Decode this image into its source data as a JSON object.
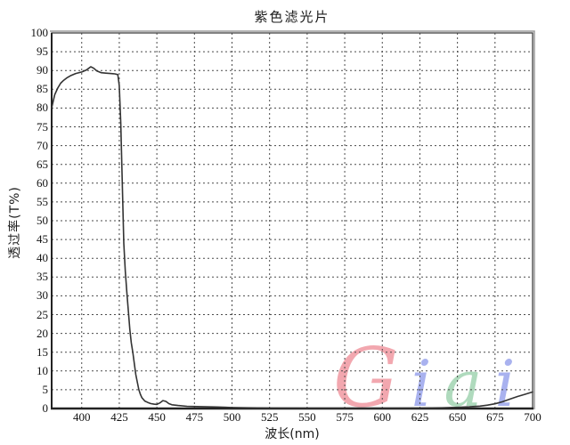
{
  "title": "紫色滤光片",
  "axes": {
    "x_label": "波长(nm)",
    "y_label": "透过率(T%)"
  },
  "watermark": {
    "text": "Giai",
    "letters": [
      {
        "char": "G",
        "color": "#F19CA4"
      },
      {
        "char": "i",
        "color": "#9EA8ED"
      },
      {
        "char": "a",
        "color": "#A4D6B4"
      },
      {
        "char": "i",
        "color": "#9EA8ED"
      }
    ]
  },
  "chart_data": {
    "type": "line",
    "title": "紫色滤光片",
    "xlabel": "波长(nm)",
    "ylabel": "透过率(T%)",
    "xlim": [
      380,
      700
    ],
    "ylim": [
      0,
      100
    ],
    "x_ticks": [
      400,
      425,
      450,
      475,
      500,
      525,
      550,
      575,
      600,
      625,
      650,
      675,
      700
    ],
    "y_ticks": [
      0,
      5,
      10,
      15,
      20,
      25,
      30,
      35,
      40,
      45,
      50,
      55,
      60,
      65,
      70,
      75,
      80,
      85,
      90,
      95,
      100
    ],
    "grid": "dotted",
    "legend": "none",
    "line_color": "#333333",
    "series": [
      {
        "name": "透过率",
        "points": [
          [
            380,
            80.0
          ],
          [
            382,
            83.5
          ],
          [
            384,
            85.3
          ],
          [
            386,
            86.6
          ],
          [
            388,
            87.4
          ],
          [
            390,
            88.0
          ],
          [
            393,
            88.7
          ],
          [
            396,
            89.2
          ],
          [
            400,
            89.6
          ],
          [
            403,
            90.1
          ],
          [
            406,
            91.0
          ],
          [
            408,
            90.6
          ],
          [
            410,
            89.9
          ],
          [
            413,
            89.4
          ],
          [
            416,
            89.3
          ],
          [
            419,
            89.2
          ],
          [
            422,
            89.1
          ],
          [
            424,
            88.9
          ],
          [
            425,
            86.0
          ],
          [
            426,
            76.0
          ],
          [
            427,
            60.0
          ],
          [
            428,
            44.0
          ],
          [
            429,
            36.5
          ],
          [
            430,
            31.0
          ],
          [
            431,
            26.0
          ],
          [
            432,
            21.0
          ],
          [
            433,
            17.5
          ],
          [
            434,
            15.0
          ],
          [
            435,
            12.0
          ],
          [
            436,
            9.0
          ],
          [
            437,
            7.0
          ],
          [
            438,
            5.0
          ],
          [
            439,
            3.8
          ],
          [
            440,
            2.9
          ],
          [
            442,
            2.0
          ],
          [
            444,
            1.6
          ],
          [
            446,
            1.3
          ],
          [
            448,
            1.15
          ],
          [
            450,
            1.1
          ],
          [
            452,
            1.5
          ],
          [
            454,
            2.1
          ],
          [
            456,
            1.9
          ],
          [
            458,
            1.3
          ],
          [
            460,
            1.0
          ],
          [
            464,
            0.8
          ],
          [
            470,
            0.6
          ],
          [
            480,
            0.5
          ],
          [
            490,
            0.4
          ],
          [
            500,
            0.25
          ],
          [
            510,
            0.2
          ],
          [
            525,
            0.15
          ],
          [
            550,
            0.12
          ],
          [
            575,
            0.12
          ],
          [
            600,
            0.13
          ],
          [
            625,
            0.15
          ],
          [
            640,
            0.2
          ],
          [
            650,
            0.3
          ],
          [
            658,
            0.45
          ],
          [
            665,
            0.65
          ],
          [
            670,
            0.9
          ],
          [
            675,
            1.25
          ],
          [
            680,
            1.8
          ],
          [
            685,
            2.5
          ],
          [
            690,
            3.2
          ],
          [
            695,
            3.8
          ],
          [
            700,
            4.4
          ]
        ]
      }
    ]
  }
}
